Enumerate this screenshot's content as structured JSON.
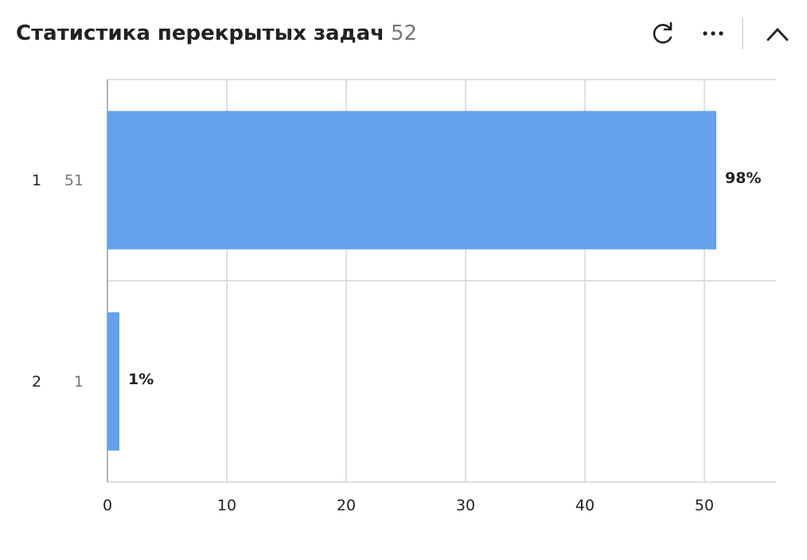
{
  "chart_data": {
    "type": "hbar",
    "title": "Статистика перекрытых задач",
    "total": "52",
    "categories": [
      "1",
      "2"
    ],
    "values": [
      51,
      1
    ],
    "share_labels": [
      "98%",
      "1%"
    ],
    "color": "#63a1eb",
    "xlim": [
      0,
      56
    ],
    "xticks": [
      0,
      10,
      20,
      30,
      40,
      50
    ],
    "grid": true
  }
}
